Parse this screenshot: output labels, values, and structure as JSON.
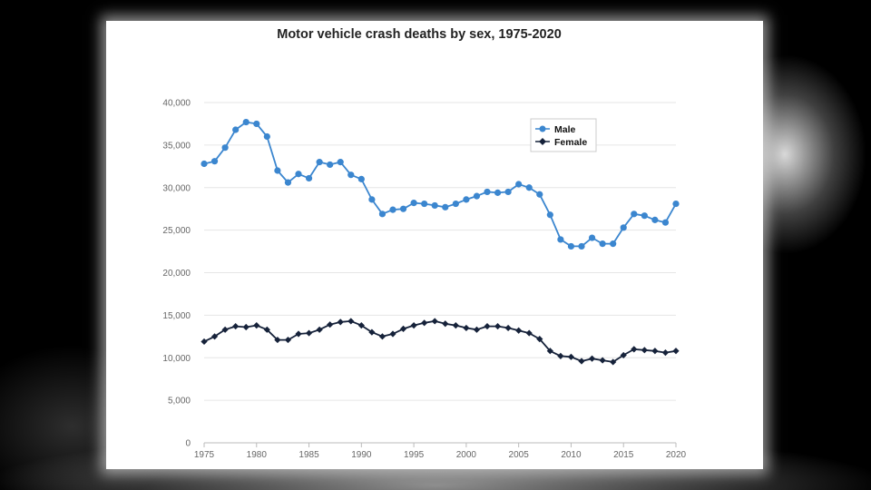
{
  "colors": {
    "male": "#3b86cf",
    "female": "#16223a",
    "grid": "#e6e6e6",
    "axis": "#bbbbbb"
  },
  "chart_data": {
    "type": "line",
    "title": "Motor vehicle crash deaths by sex, 1975-2020",
    "xlabel": "",
    "ylabel": "",
    "x": [
      1975,
      1976,
      1977,
      1978,
      1979,
      1980,
      1981,
      1982,
      1983,
      1984,
      1985,
      1986,
      1987,
      1988,
      1989,
      1990,
      1991,
      1992,
      1993,
      1994,
      1995,
      1996,
      1997,
      1998,
      1999,
      2000,
      2001,
      2002,
      2003,
      2004,
      2005,
      2006,
      2007,
      2008,
      2009,
      2010,
      2011,
      2012,
      2013,
      2014,
      2015,
      2016,
      2017,
      2018,
      2019,
      2020
    ],
    "xlim": [
      1975,
      2020
    ],
    "ylim": [
      0,
      40000
    ],
    "x_ticks": [
      1975,
      1980,
      1985,
      1990,
      1995,
      2000,
      2005,
      2010,
      2015,
      2020
    ],
    "x_tick_labels": [
      "1975",
      "1980",
      "1985",
      "1990",
      "1995",
      "2000",
      "2005",
      "2010",
      "2015",
      "2020"
    ],
    "y_ticks": [
      0,
      5000,
      10000,
      15000,
      20000,
      25000,
      30000,
      35000,
      40000
    ],
    "y_tick_labels": [
      "0",
      "5,000",
      "10,000",
      "15,000",
      "20,000",
      "25,000",
      "30,000",
      "35,000",
      "40,000"
    ],
    "grid": true,
    "legend_position": "top-right",
    "series": [
      {
        "name": "Male",
        "marker": "circle",
        "values": [
          32800,
          33100,
          34700,
          36800,
          37700,
          37500,
          36000,
          32000,
          30600,
          31600,
          31100,
          33000,
          32700,
          33000,
          31500,
          31000,
          28600,
          26900,
          27400,
          27500,
          28200,
          28100,
          27900,
          27700,
          28100,
          28600,
          29000,
          29500,
          29400,
          29500,
          30400,
          30000,
          29200,
          26800,
          23900,
          23100,
          23100,
          24100,
          23400,
          23400,
          25300,
          26900,
          26700,
          26200,
          25900,
          28100
        ]
      },
      {
        "name": "Female",
        "marker": "diamond",
        "values": [
          11900,
          12500,
          13300,
          13700,
          13600,
          13800,
          13300,
          12100,
          12100,
          12800,
          12900,
          13300,
          13900,
          14200,
          14300,
          13800,
          13000,
          12500,
          12800,
          13400,
          13800,
          14100,
          14300,
          14000,
          13800,
          13500,
          13300,
          13700,
          13700,
          13500,
          13200,
          12900,
          12200,
          10800,
          10200,
          10100,
          9600,
          9900,
          9700,
          9500,
          10300,
          11000,
          10900,
          10800,
          10600,
          10800
        ]
      }
    ]
  }
}
